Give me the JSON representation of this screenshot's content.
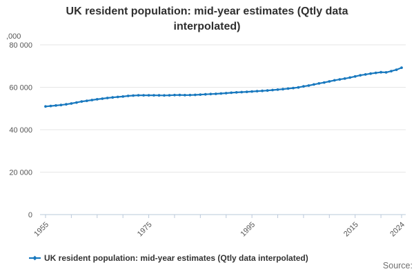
{
  "title_lines": [
    "UK resident population: mid-year estimates (Qtly data",
    "interpolated)"
  ],
  "legend": {
    "label": "UK resident population: mid-year estimates (Qtly data interpolated)"
  },
  "source_label": "Source:",
  "y_axis": {
    "unit_label": ",000",
    "ticks": [
      {
        "value": 0,
        "label": "0"
      },
      {
        "value": 20000,
        "label": "20 000"
      },
      {
        "value": 40000,
        "label": "40 000"
      },
      {
        "value": 60000,
        "label": "60 000"
      },
      {
        "value": 80000,
        "label": "80 000"
      }
    ]
  },
  "x_axis": {
    "ticks": [
      {
        "year": 1955,
        "label": "1955"
      },
      {
        "year": 1960,
        "label": ""
      },
      {
        "year": 1965,
        "label": ""
      },
      {
        "year": 1970,
        "label": ""
      },
      {
        "year": 1975,
        "label": "1975"
      },
      {
        "year": 1980,
        "label": ""
      },
      {
        "year": 1985,
        "label": ""
      },
      {
        "year": 1990,
        "label": ""
      },
      {
        "year": 1995,
        "label": "1995"
      },
      {
        "year": 2000,
        "label": ""
      },
      {
        "year": 2005,
        "label": ""
      },
      {
        "year": 2010,
        "label": ""
      },
      {
        "year": 2015,
        "label": "2015"
      },
      {
        "year": 2020,
        "label": ""
      },
      {
        "year": 2024,
        "label": "2024"
      }
    ]
  },
  "colors": {
    "line": "#1878be",
    "grid": "#e6e6e6",
    "axis": "#bac8da",
    "title_text": "#2f2f2f",
    "tick_label": "#555555",
    "legend_text": "#333333",
    "source_text": "#6e6e6e"
  },
  "chart_data": {
    "type": "line",
    "title": "UK resident population: mid-year estimates (Qtly data interpolated)",
    "ylabel": ",000",
    "xlabel": "",
    "ylim": [
      0,
      80000
    ],
    "xlim": [
      1955,
      2024
    ],
    "grid": true,
    "legend_position": "bottom",
    "marker": "circle",
    "x": [
      1955,
      1956,
      1957,
      1958,
      1959,
      1960,
      1961,
      1962,
      1963,
      1964,
      1965,
      1966,
      1967,
      1968,
      1969,
      1970,
      1971,
      1972,
      1973,
      1974,
      1975,
      1976,
      1977,
      1978,
      1979,
      1980,
      1981,
      1982,
      1983,
      1984,
      1985,
      1986,
      1987,
      1988,
      1989,
      1990,
      1991,
      1992,
      1993,
      1994,
      1995,
      1996,
      1997,
      1998,
      1999,
      2000,
      2001,
      2002,
      2003,
      2004,
      2005,
      2006,
      2007,
      2008,
      2009,
      2010,
      2011,
      2012,
      2013,
      2014,
      2015,
      2016,
      2017,
      2018,
      2019,
      2020,
      2021,
      2022,
      2023,
      2024
    ],
    "series": [
      {
        "name": "UK resident population: mid-year estimates (Qtly data interpolated)",
        "values": [
          50946,
          51184,
          51430,
          51652,
          51956,
          52372,
          52807,
          53292,
          53625,
          53991,
          54350,
          54643,
          54959,
          55214,
          55461,
          55632,
          55928,
          56097,
          56223,
          56236,
          56226,
          56216,
          56190,
          56178,
          56240,
          56330,
          56357,
          56291,
          56316,
          56409,
          56554,
          56684,
          56804,
          56916,
          57076,
          57237,
          57439,
          57585,
          57714,
          57862,
          58025,
          58164,
          58314,
          58475,
          58684,
          58886,
          59113,
          59366,
          59637,
          59950,
          60413,
          60827,
          61319,
          61824,
          62260,
          62759,
          63285,
          63705,
          64106,
          64597,
          65110,
          65648,
          66040,
          66436,
          66797,
          67081,
          67026,
          67596,
          68265,
          69250
        ]
      }
    ]
  }
}
